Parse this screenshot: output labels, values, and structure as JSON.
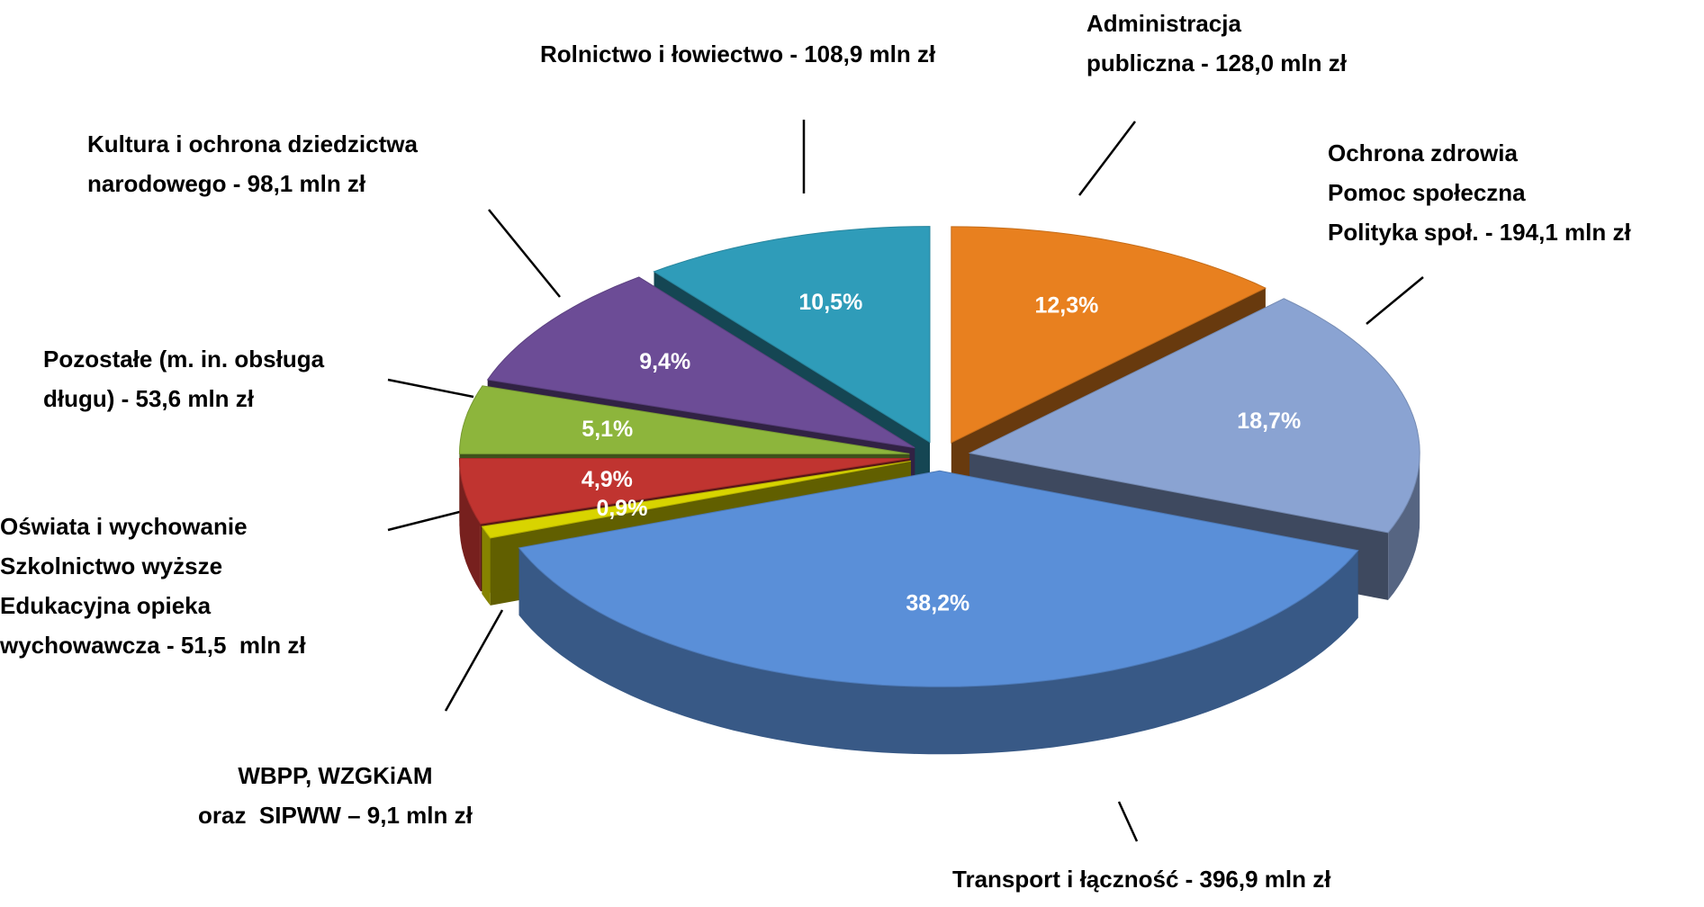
{
  "chart_data": {
    "type": "pie",
    "categories": [
      "Administracja\npubliczna - 128,0 mln zł",
      "Ochrona zdrowia\nPomoc społeczna\nPolityka społ. - 194,1 mln zł",
      "Transport i łączność - 396,9 mln zł",
      "WBPP, WZGKiAM\noraz  SIPWW – 9,1 mln zł",
      "Oświata i wychowanie\nSzkolnictwo wyższe\nEdukacyjna opieka\nwychowawcza - 51,5  mln zł",
      "Pozostałe (m. in. obsługa\ndługu) - 53,6 mln zł",
      "Kultura i ochrona dziedzictwa\nnarodowego - 98,1 mln zł",
      "Rolnictwo i łowiectwo - 108,9 mln zł"
    ],
    "values": [
      12.3,
      18.7,
      38.2,
      0.9,
      4.9,
      5.1,
      9.4,
      10.5
    ],
    "value_labels": [
      "12,3%",
      "18,7%",
      "38,2%",
      "0,9%",
      "4,9%",
      "5,1%",
      "9,4%",
      "10,5%"
    ],
    "colors": [
      "#e8801f",
      "#8aa3d2",
      "#5a8fd8",
      "#d8d400",
      "#c03430",
      "#8db53c",
      "#6c4c96",
      "#2f9cb9"
    ]
  }
}
